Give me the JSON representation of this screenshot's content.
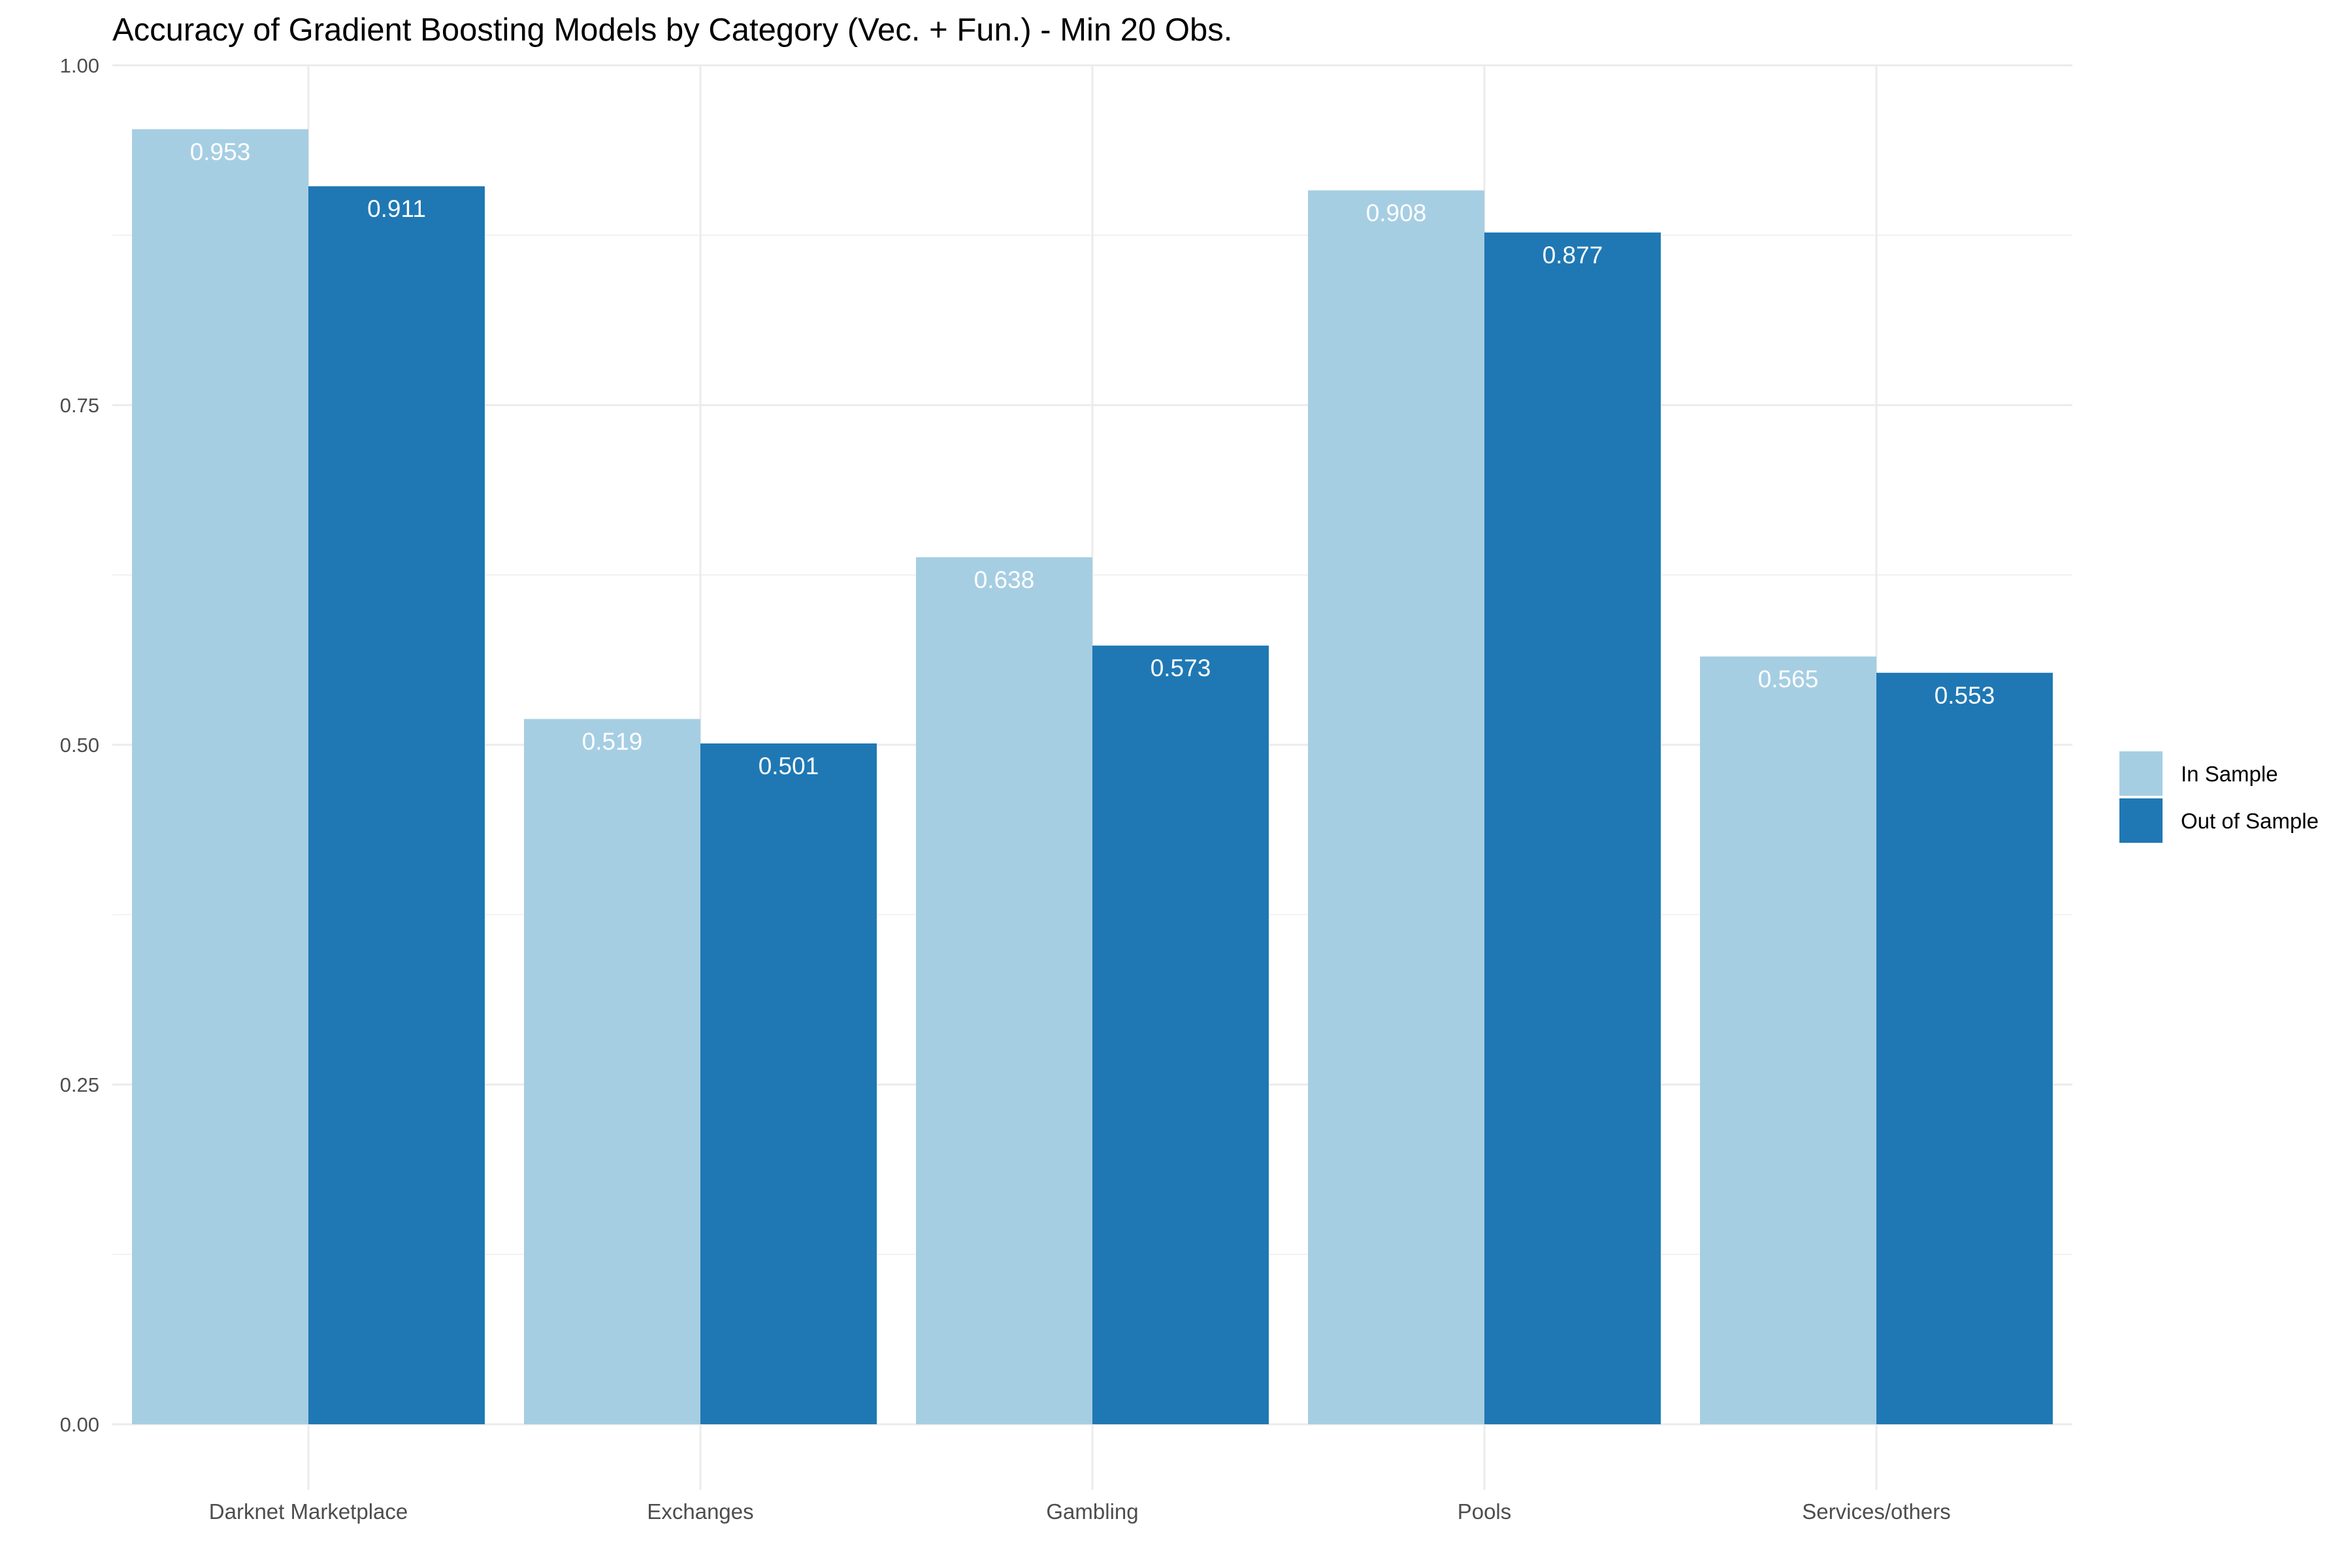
{
  "chart_data": {
    "type": "bar",
    "title": "Accuracy of Gradient Boosting Models by Category (Vec. + Fun.) - Min 20 Obs.",
    "xlabel": "",
    "ylabel": "",
    "ylim": [
      0,
      1
    ],
    "yticks": [
      "0.00",
      "0.25",
      "0.50",
      "0.75",
      "1.00"
    ],
    "grid": true,
    "legend_position": "right",
    "categories": [
      "Darknet Marketplace",
      "Exchanges",
      "Gambling",
      "Pools",
      "Services/others"
    ],
    "series": [
      {
        "name": "In Sample",
        "color": "#a6cee3",
        "values": [
          0.953,
          0.519,
          0.638,
          0.908,
          0.565
        ],
        "labels": [
          "0.953",
          "0.519",
          "0.638",
          "0.908",
          "0.565"
        ]
      },
      {
        "name": "Out of Sample",
        "color": "#1f78b4",
        "values": [
          0.911,
          0.501,
          0.573,
          0.877,
          0.553
        ],
        "labels": [
          "0.911",
          "0.501",
          "0.573",
          "0.877",
          "0.553"
        ]
      }
    ]
  }
}
